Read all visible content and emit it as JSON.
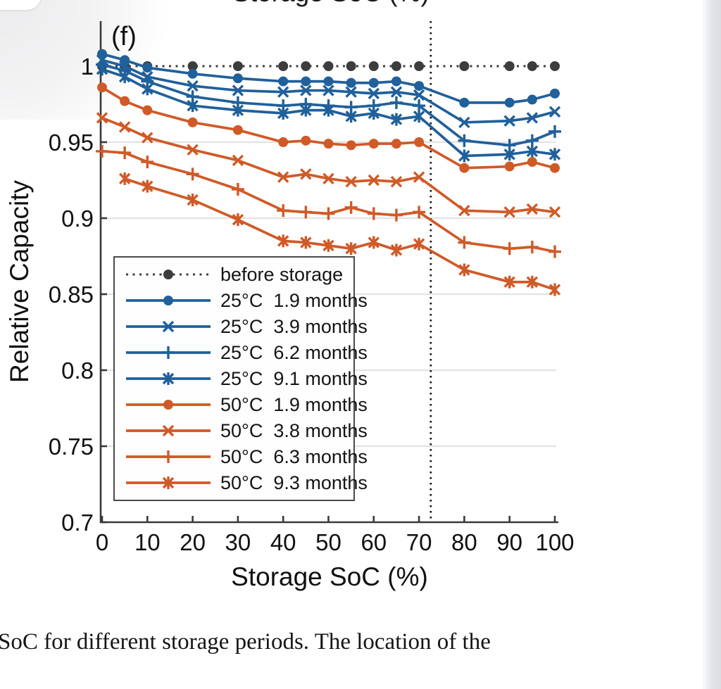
{
  "page": {
    "top_cropped_label": "Storage SoC (%)",
    "caption": "SoC for different storage periods. The location of the"
  },
  "chart_data": {
    "type": "line",
    "panel_label": "(f)",
    "xlabel": "Storage SoC (%)",
    "ylabel": "Relative Capacity",
    "xlim": [
      0,
      100
    ],
    "ylim": [
      0.7,
      1.03
    ],
    "xticks": [
      0,
      10,
      20,
      30,
      40,
      50,
      60,
      70,
      80,
      90,
      100
    ],
    "yticks": [
      0.7,
      0.75,
      0.8,
      0.85,
      0.9,
      0.95,
      1
    ],
    "ytick_labels": [
      "0.7",
      "0.75",
      "0.8",
      "0.85",
      "0.9",
      "0.95",
      "1"
    ],
    "grid": "horizontal-only",
    "gridline_values": [
      0.75,
      0.8,
      0.85,
      0.9,
      0.95
    ],
    "vline_x": 72.6,
    "legend_position": "lower-left",
    "colors": {
      "blue": "#20609b",
      "orange": "#d05a27",
      "gray": "#3d3d3d"
    },
    "x": [
      0,
      5,
      10,
      20,
      30,
      40,
      45,
      50,
      55,
      60,
      65,
      70,
      80,
      90,
      95,
      100
    ],
    "series": [
      {
        "name": "before storage",
        "color": "#3d3d3d",
        "line": "dotted",
        "marker": "circle",
        "values": [
          1,
          1,
          1,
          1,
          1,
          1,
          1,
          1,
          1,
          1,
          1,
          1,
          1,
          1,
          1,
          1
        ]
      },
      {
        "name": "25°C  1.9 months",
        "color": "#20609b",
        "line": "solid",
        "marker": "circle",
        "values": [
          1.008,
          1.004,
          0.999,
          0.995,
          0.992,
          0.99,
          0.99,
          0.99,
          0.989,
          0.989,
          0.99,
          0.987,
          0.976,
          0.976,
          0.978,
          0.982
        ]
      },
      {
        "name": "25°C  3.9 months",
        "color": "#20609b",
        "line": "solid",
        "marker": "x",
        "values": [
          1.004,
          1.0,
          0.993,
          0.987,
          0.984,
          0.983,
          0.984,
          0.984,
          0.983,
          0.982,
          0.983,
          0.981,
          0.963,
          0.964,
          0.966,
          0.97
        ]
      },
      {
        "name": "25°C  6.2 months",
        "color": "#20609b",
        "line": "solid",
        "marker": "plus",
        "values": [
          1.001,
          0.997,
          0.99,
          0.98,
          0.976,
          0.974,
          0.975,
          0.974,
          0.973,
          0.974,
          0.976,
          0.974,
          0.951,
          0.948,
          0.951,
          0.957
        ]
      },
      {
        "name": "25°C  9.1 months",
        "color": "#20609b",
        "line": "solid",
        "marker": "asterisk",
        "values": [
          0.998,
          0.993,
          0.985,
          0.974,
          0.971,
          0.969,
          0.971,
          0.971,
          0.967,
          0.969,
          0.965,
          0.967,
          0.941,
          0.942,
          0.944,
          0.942
        ]
      },
      {
        "name": "50°C  1.9 months",
        "color": "#d05a27",
        "line": "solid",
        "marker": "circle",
        "values": [
          0.986,
          0.977,
          0.971,
          0.963,
          0.958,
          0.95,
          0.951,
          0.949,
          0.948,
          0.949,
          0.949,
          0.95,
          0.933,
          0.934,
          0.937,
          0.933
        ]
      },
      {
        "name": "50°C  3.8 months",
        "color": "#d05a27",
        "line": "solid",
        "marker": "x",
        "values": [
          0.966,
          0.96,
          0.953,
          0.945,
          0.938,
          0.927,
          0.929,
          0.926,
          0.924,
          0.925,
          0.924,
          0.927,
          0.905,
          0.904,
          0.906,
          0.904
        ]
      },
      {
        "name": "50°C  6.3 months",
        "color": "#d05a27",
        "line": "solid",
        "marker": "plus",
        "values": [
          0.944,
          0.943,
          0.937,
          0.929,
          0.919,
          0.905,
          0.904,
          0.903,
          0.907,
          0.903,
          0.902,
          0.904,
          0.884,
          0.88,
          0.881,
          0.878
        ]
      },
      {
        "name": "50°C  9.3 months",
        "color": "#d05a27",
        "line": "solid",
        "marker": "asterisk",
        "values": [
          null,
          0.926,
          0.921,
          0.912,
          0.899,
          0.885,
          0.884,
          0.882,
          0.88,
          0.884,
          0.879,
          0.883,
          0.866,
          0.858,
          0.858,
          0.853
        ]
      }
    ]
  }
}
